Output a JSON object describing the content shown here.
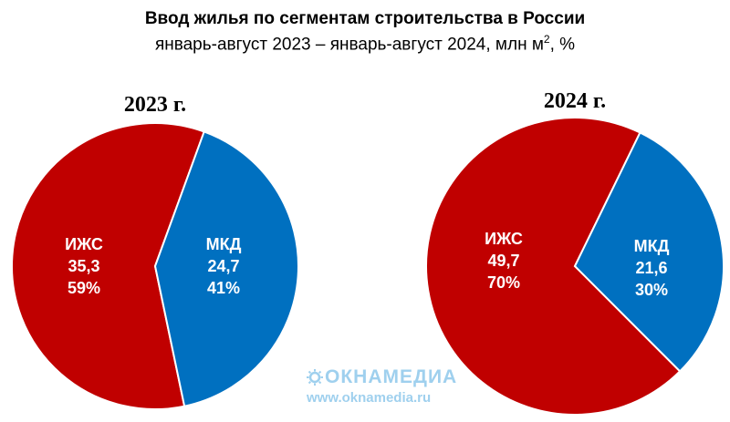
{
  "header": {
    "title": "Ввод жилья по сегментам строительства в России",
    "subtitle_main": "январь-август 2023 – январь-август 2024, млн м",
    "subtitle_sup": "2",
    "subtitle_tail": ", %"
  },
  "watermark": {
    "logo_text": "ОКНАМЕДИА",
    "url": "www.oknamedia.ru"
  },
  "colors": {
    "izhs": "#c00000",
    "mkd": "#0070c0",
    "label_text": "#ffffff"
  },
  "chart_data": [
    {
      "type": "pie",
      "title": "2023 г.",
      "categories": [
        "ИЖС",
        "МКД"
      ],
      "values": [
        35.3,
        24.7
      ],
      "value_labels": [
        "35,3",
        "24,7"
      ],
      "percent_labels": [
        "59%",
        "41%"
      ],
      "unit": "млн м²"
    },
    {
      "type": "pie",
      "title": "2024 г.",
      "categories": [
        "ИЖС",
        "МКД"
      ],
      "values": [
        49.7,
        21.6
      ],
      "value_labels": [
        "49,7",
        "21,6"
      ],
      "percent_labels": [
        "70%",
        "30%"
      ],
      "unit": "млн м²"
    }
  ]
}
